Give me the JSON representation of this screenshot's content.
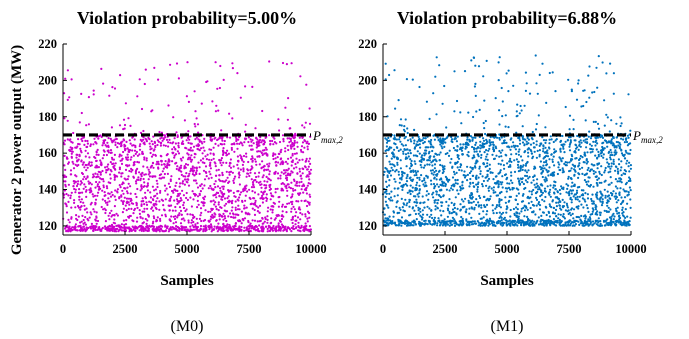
{
  "chart_data": [
    {
      "type": "scatter",
      "title": "Violation probability=5.00%",
      "caption": "(M0)",
      "xlabel": "Samples",
      "ylabel": "Generator 2 power output (MW)",
      "xlim": [
        0,
        10000
      ],
      "ylim": [
        115,
        220
      ],
      "xticks": [
        "0",
        "2500",
        "5000",
        "7500",
        "10000"
      ],
      "yticks": [
        "120",
        "140",
        "160",
        "180",
        "200",
        "220"
      ],
      "n_samples": 10000,
      "y_min": 117,
      "y_max": 211,
      "violation_probability": 0.05,
      "color": "#cc00cc",
      "threshold": {
        "y": 170,
        "label_main": "P",
        "label_sub": "max,2"
      }
    },
    {
      "type": "scatter",
      "title": "Violation probability=6.88%",
      "caption": "(M1)",
      "xlabel": "Samples",
      "ylabel": "",
      "xlim": [
        0,
        10000
      ],
      "ylim": [
        115,
        220
      ],
      "xticks": [
        "0",
        "2500",
        "5000",
        "7500",
        "10000"
      ],
      "yticks": [
        "120",
        "140",
        "160",
        "180",
        "200",
        "220"
      ],
      "n_samples": 10000,
      "y_min": 120,
      "y_max": 214,
      "violation_probability": 0.0688,
      "color": "#0072bd",
      "threshold": {
        "y": 170,
        "label_main": "P",
        "label_sub": "max,2"
      }
    }
  ]
}
